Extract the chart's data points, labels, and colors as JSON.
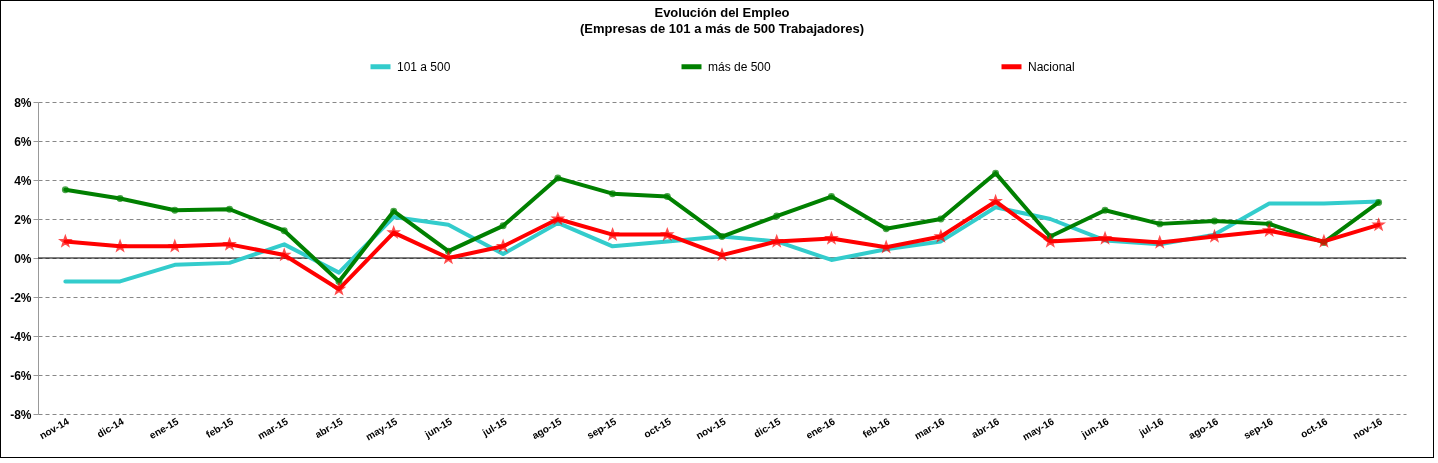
{
  "chart_data": {
    "type": "line",
    "title": "Evolución del Empleo",
    "subtitle": "(Empresas de 101 a más de 500 Trabajadores)",
    "categories": [
      "nov-14",
      "dic-14",
      "ene-15",
      "feb-15",
      "mar-15",
      "abr-15",
      "may-15",
      "jun-15",
      "jul-15",
      "ago-15",
      "sep-15",
      "oct-15",
      "nov-15",
      "dic-15",
      "ene-16",
      "feb-16",
      "mar-16",
      "abr-16",
      "may-16",
      "jun-16",
      "jul-16",
      "ago-16",
      "sep-16",
      "oct-16",
      "nov-16"
    ],
    "series": [
      {
        "name": "101 a 500",
        "color": "#33cccc",
        "marker": "none",
        "values": [
          -1.2,
          -1.2,
          -0.35,
          -0.25,
          0.7,
          -0.75,
          2.1,
          1.7,
          0.2,
          1.8,
          0.6,
          0.85,
          1.1,
          0.85,
          -0.1,
          0.45,
          0.85,
          2.6,
          2.0,
          0.9,
          0.7,
          1.2,
          2.8,
          2.8,
          2.9
        ]
      },
      {
        "name": "más de 500",
        "color": "#008000",
        "marker": "circle",
        "values": [
          3.5,
          3.05,
          2.45,
          2.5,
          1.4,
          -1.2,
          2.4,
          0.35,
          1.65,
          4.1,
          3.3,
          3.15,
          1.1,
          2.15,
          3.15,
          1.5,
          2.0,
          4.35,
          1.1,
          2.45,
          1.75,
          1.9,
          1.75,
          0.8,
          2.85
        ]
      },
      {
        "name": "Nacional",
        "color": "#ff0000",
        "marker": "star",
        "values": [
          0.85,
          0.6,
          0.6,
          0.7,
          0.15,
          -1.6,
          1.3,
          0.0,
          0.6,
          2.0,
          1.2,
          1.2,
          0.15,
          0.85,
          1.0,
          0.55,
          1.1,
          2.9,
          0.85,
          1.0,
          0.8,
          1.1,
          1.4,
          0.85,
          1.7
        ]
      }
    ],
    "ylim": [
      -8,
      8
    ],
    "yticks": [
      {
        "value": -8,
        "label": "-8%"
      },
      {
        "value": -6,
        "label": "-6%"
      },
      {
        "value": -4,
        "label": "-4%"
      },
      {
        "value": -2,
        "label": "-2%"
      },
      {
        "value": 0,
        "label": "0%"
      },
      {
        "value": 2,
        "label": "2%"
      },
      {
        "value": 4,
        "label": "4%"
      },
      {
        "value": 6,
        "label": "6%"
      },
      {
        "value": 8,
        "label": "8%"
      }
    ],
    "ref_lines": [
      {
        "axis": "y",
        "value": 0,
        "color": "#000000",
        "line_style": "solid"
      }
    ],
    "grid": "y",
    "legend": "top",
    "line_style": "solid"
  }
}
